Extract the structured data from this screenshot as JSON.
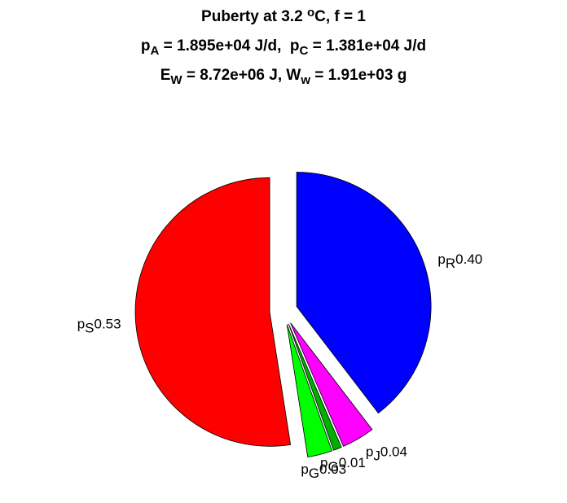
{
  "chart_data": {
    "type": "pie",
    "title": [
      [
        {
          "t": "Puberty at 3.2 "
        },
        {
          "sup": "o"
        },
        {
          "t": "C, f = 1"
        }
      ],
      [
        {
          "t": "p"
        },
        {
          "sub": "A"
        },
        {
          "t": " = 1.895e+04 J/d,  p"
        },
        {
          "sub": "C"
        },
        {
          "t": " = 1.381e+04 J/d"
        }
      ],
      [
        {
          "t": "E"
        },
        {
          "sub": "W"
        },
        {
          "t": " = 8.72e+06 J, W"
        },
        {
          "sub": "w"
        },
        {
          "t": " = 1.91e+03 g"
        }
      ]
    ],
    "categories": [
      "p",
      "p",
      "p",
      "p",
      "p"
    ],
    "category_subscripts": [
      "R",
      "J",
      "G",
      "G",
      "S"
    ],
    "values": [
      0.4,
      0.04,
      0.01,
      0.03,
      0.53
    ],
    "value_labels": [
      "0.40",
      "0.04",
      "0.01",
      "0.03",
      "0.53"
    ],
    "colors": [
      "#0000ff",
      "#ff00ff",
      "#00b000",
      "#00ff00",
      "#ff0000"
    ],
    "explode": true
  }
}
